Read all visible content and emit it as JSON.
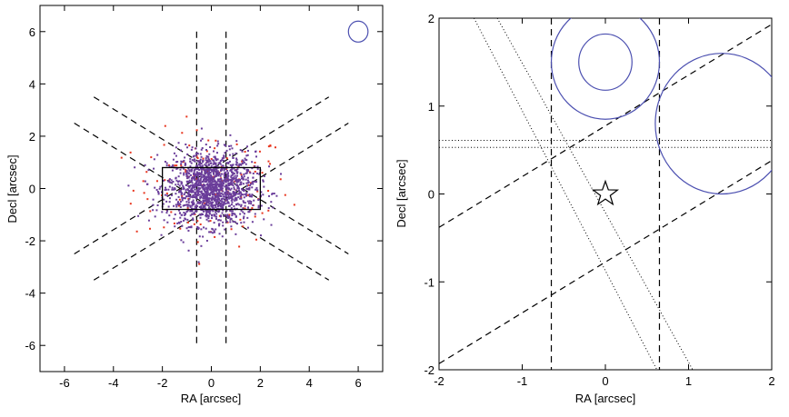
{
  "chart_data": [
    {
      "type": "scatter",
      "title": "",
      "xlabel": "RA [arcsec]",
      "ylabel": "Decl [arcsec]",
      "xlim": [
        -7,
        7
      ],
      "ylim": [
        -7,
        7
      ],
      "xticks": [
        "-6",
        "-4",
        "-2",
        "0",
        "2",
        "4",
        "6"
      ],
      "yticks": [
        "-6",
        "-4",
        "-2",
        "0",
        "2",
        "4",
        "6"
      ],
      "grid": false,
      "colors": {
        "dense": "#6a3d9a",
        "sparse": "#e8351e",
        "circle": "#4b4fb0",
        "lines": "#000000"
      },
      "series": [
        {
          "color": "purple",
          "points_approx": 1500,
          "center": [
            0,
            0
          ],
          "sigma": [
            0.9,
            0.7
          ]
        },
        {
          "color": "red",
          "points_approx": 140,
          "center": [
            0,
            0
          ],
          "sigma": [
            1.6,
            1.1
          ]
        }
      ],
      "box": {
        "x": [
          -2,
          2
        ],
        "y": [
          -0.8,
          0.8
        ]
      },
      "circle": {
        "center": [
          6,
          6
        ],
        "radius": 0.4
      },
      "dashed_lines": [
        {
          "from": [
            -0.6,
            6
          ],
          "to": [
            -0.6,
            -6
          ]
        },
        {
          "from": [
            0.6,
            6
          ],
          "to": [
            0.6,
            -6
          ]
        },
        {
          "from": [
            -5.6,
            -2.5
          ],
          "to": [
            4.8,
            3.5
          ]
        },
        {
          "from": [
            -4.8,
            -3.5
          ],
          "to": [
            5.6,
            2.5
          ]
        },
        {
          "from": [
            -5.6,
            2.5
          ],
          "to": [
            4.8,
            -3.5
          ]
        },
        {
          "from": [
            -4.8,
            3.5
          ],
          "to": [
            5.6,
            -2.5
          ]
        }
      ]
    },
    {
      "type": "scatter",
      "title": "",
      "xlabel": "RA [arcsec]",
      "ylabel": "Decl [arcsec]",
      "xlim": [
        -2,
        2
      ],
      "ylim": [
        -2,
        2
      ],
      "xticks": [
        "-2",
        "-1",
        "0",
        "1",
        "2"
      ],
      "yticks": [
        "-2",
        "-1",
        "0",
        "1",
        "2"
      ],
      "grid": false,
      "marker": {
        "type": "star",
        "at": [
          0,
          0
        ]
      },
      "circles": [
        {
          "center": [
            0,
            1.5
          ],
          "radius": 0.65
        },
        {
          "center": [
            0,
            1.5
          ],
          "radius": 0.32
        },
        {
          "center": [
            1.4,
            0.8
          ],
          "radius": 0.8
        }
      ],
      "dashed_lines": [
        {
          "from": [
            -0.65,
            2
          ],
          "to": [
            -0.65,
            -2
          ]
        },
        {
          "from": [
            0.65,
            2
          ],
          "to": [
            0.65,
            -2
          ]
        },
        {
          "from": [
            -2,
            -0.38
          ],
          "to": [
            2,
            1.93
          ]
        },
        {
          "from": [
            -2,
            -1.93
          ],
          "to": [
            2,
            0.38
          ]
        }
      ],
      "dotted_lines": [
        {
          "from": [
            -2,
            0.61
          ],
          "to": [
            2,
            0.61
          ]
        },
        {
          "from": [
            -2,
            0.53
          ],
          "to": [
            2,
            0.53
          ]
        },
        {
          "from": [
            -1.58,
            2
          ],
          "to": [
            0.62,
            -2
          ]
        },
        {
          "from": [
            -1.3,
            2
          ],
          "to": [
            1.05,
            -2
          ]
        }
      ]
    }
  ]
}
